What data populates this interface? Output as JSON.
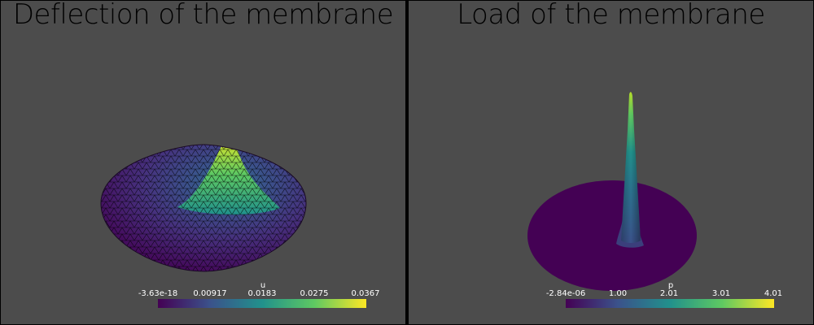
{
  "left": {
    "title": "Deflection of the membrane",
    "colorbar": {
      "title": "u",
      "ticks": [
        "-3.63e-18",
        "0.00917",
        "0.0183",
        "0.0275",
        "0.0367"
      ]
    }
  },
  "right": {
    "title": "Load of the membrane",
    "colorbar": {
      "title": "p",
      "ticks": [
        "-2.84e-06",
        "1.00",
        "2.01",
        "3.01",
        "4.01"
      ]
    }
  },
  "colors": {
    "background": "#4c4c4c",
    "colormap": [
      "#440154",
      "#3b528b",
      "#21918c",
      "#5ec962",
      "#fde725"
    ]
  }
}
